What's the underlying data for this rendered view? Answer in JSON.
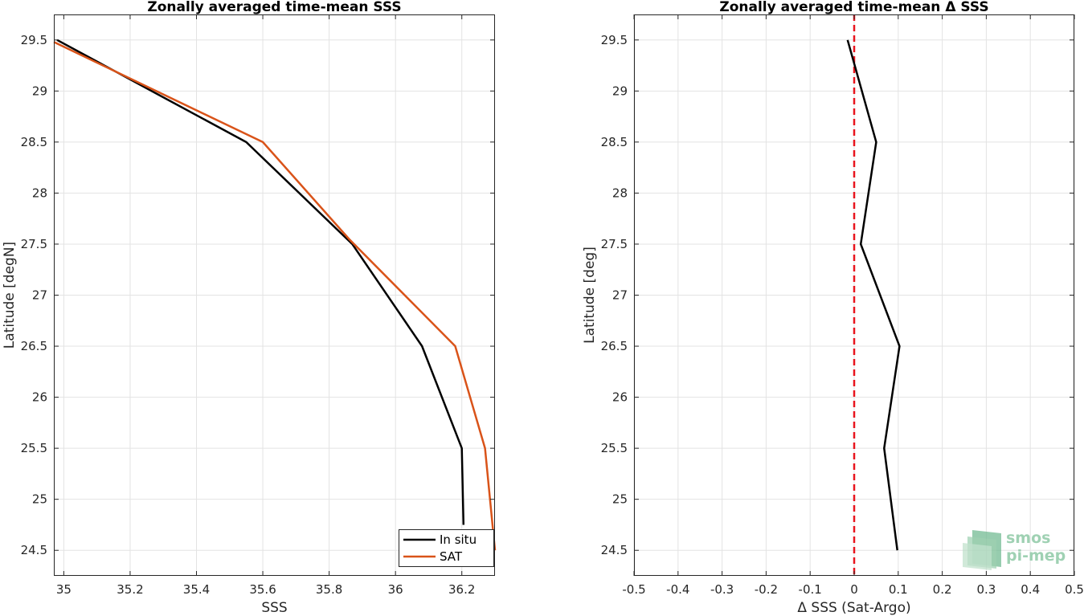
{
  "chart_data": [
    {
      "type": "line",
      "title": "Zonally averaged time-mean SSS",
      "xlabel": "SSS",
      "ylabel": "Latitude [degN]",
      "xlim": [
        34.97,
        36.3
      ],
      "ylim": [
        24.25,
        29.75
      ],
      "xticks": [
        35,
        35.2,
        35.4,
        35.6,
        35.8,
        36,
        36.2
      ],
      "xtick_labels": [
        "35",
        "35.2",
        "35.4",
        "35.6",
        "35.8",
        "36",
        "36.2"
      ],
      "yticks": [
        24.5,
        25,
        25.5,
        26,
        26.5,
        27,
        27.5,
        28,
        28.5,
        29,
        29.5
      ],
      "ytick_labels": [
        "24.5",
        "25",
        "25.5",
        "26",
        "26.5",
        "27",
        "27.5",
        "28",
        "28.5",
        "29",
        "29.5"
      ],
      "grid": true,
      "legend": "bottom-right",
      "series": [
        {
          "name": "In situ",
          "color": "#000000",
          "points": [
            [
              34.98,
              29.5
            ],
            [
              35.55,
              28.5
            ],
            [
              35.87,
              27.5
            ],
            [
              36.08,
              26.5
            ],
            [
              36.2,
              25.5
            ],
            [
              36.205,
              24.75
            ]
          ]
        },
        {
          "name": "SAT",
          "color": "#d95319",
          "points": [
            [
              34.97,
              29.48
            ],
            [
              35.6,
              28.5
            ],
            [
              35.86,
              27.55
            ],
            [
              36.18,
              26.5
            ],
            [
              36.27,
              25.5
            ],
            [
              36.3,
              24.5
            ]
          ]
        }
      ]
    },
    {
      "type": "line",
      "title": "Zonally averaged time-mean Δ SSS",
      "xlabel": "Δ SSS (Sat-Argo)",
      "ylabel": "Latitude [deg]",
      "xlim": [
        -0.5,
        0.5
      ],
      "ylim": [
        24.25,
        29.75
      ],
      "xticks": [
        -0.5,
        -0.4,
        -0.3,
        -0.2,
        -0.1,
        0,
        0.1,
        0.2,
        0.3,
        0.4,
        0.5
      ],
      "xtick_labels": [
        "-0.5",
        "-0.4",
        "-0.3",
        "-0.2",
        "-0.1",
        "0",
        "0.1",
        "0.2",
        "0.3",
        "0.4",
        "0.5"
      ],
      "yticks": [
        24.5,
        25,
        25.5,
        26,
        26.5,
        27,
        27.5,
        28,
        28.5,
        29,
        29.5
      ],
      "ytick_labels": [
        "24.5",
        "25",
        "25.5",
        "26",
        "26.5",
        "27",
        "27.5",
        "28",
        "28.5",
        "29",
        "29.5"
      ],
      "grid": true,
      "reference_line": {
        "x": 0,
        "color": "#e8141d",
        "style": "dashed"
      },
      "series": [
        {
          "color": "#000000",
          "points": [
            [
              -0.015,
              29.5
            ],
            [
              0.05,
              28.5
            ],
            [
              0.015,
              27.5
            ],
            [
              0.103,
              26.5
            ],
            [
              0.068,
              25.5
            ],
            [
              0.098,
              24.5
            ]
          ]
        }
      ]
    }
  ],
  "logo": {
    "line1": "smos",
    "line2": "pi-mep"
  }
}
